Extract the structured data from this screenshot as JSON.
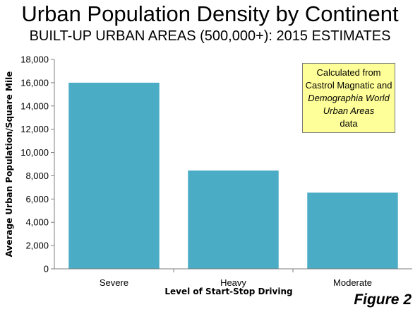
{
  "chart_data": {
    "type": "bar",
    "title": "Urban Population Density by Continent",
    "subtitle": "BUILT-UP URBAN AREAS (500,000+): 2015 ESTIMATES",
    "categories": [
      "Severe",
      "Heavy",
      "Moderate"
    ],
    "values": [
      16000,
      8450,
      6550
    ],
    "xlabel": "Level of Start-Stop Driving",
    "ylabel": "Average Urban Population/Square Mile",
    "ylim": [
      0,
      18000
    ],
    "yticks": [
      "0",
      "2,000",
      "4,000",
      "6,000",
      "8,000",
      "10,000",
      "12,000",
      "14,000",
      "16,000",
      "18,000"
    ],
    "grid": false,
    "bar_color": "#4bacc6",
    "annotation": {
      "line1": "Calculated from",
      "line2": "Castrol Magnatic and",
      "line3": "Demographia World",
      "line4": "Urban Areas",
      "line5": "data"
    }
  },
  "figure_label": "Figure 2"
}
